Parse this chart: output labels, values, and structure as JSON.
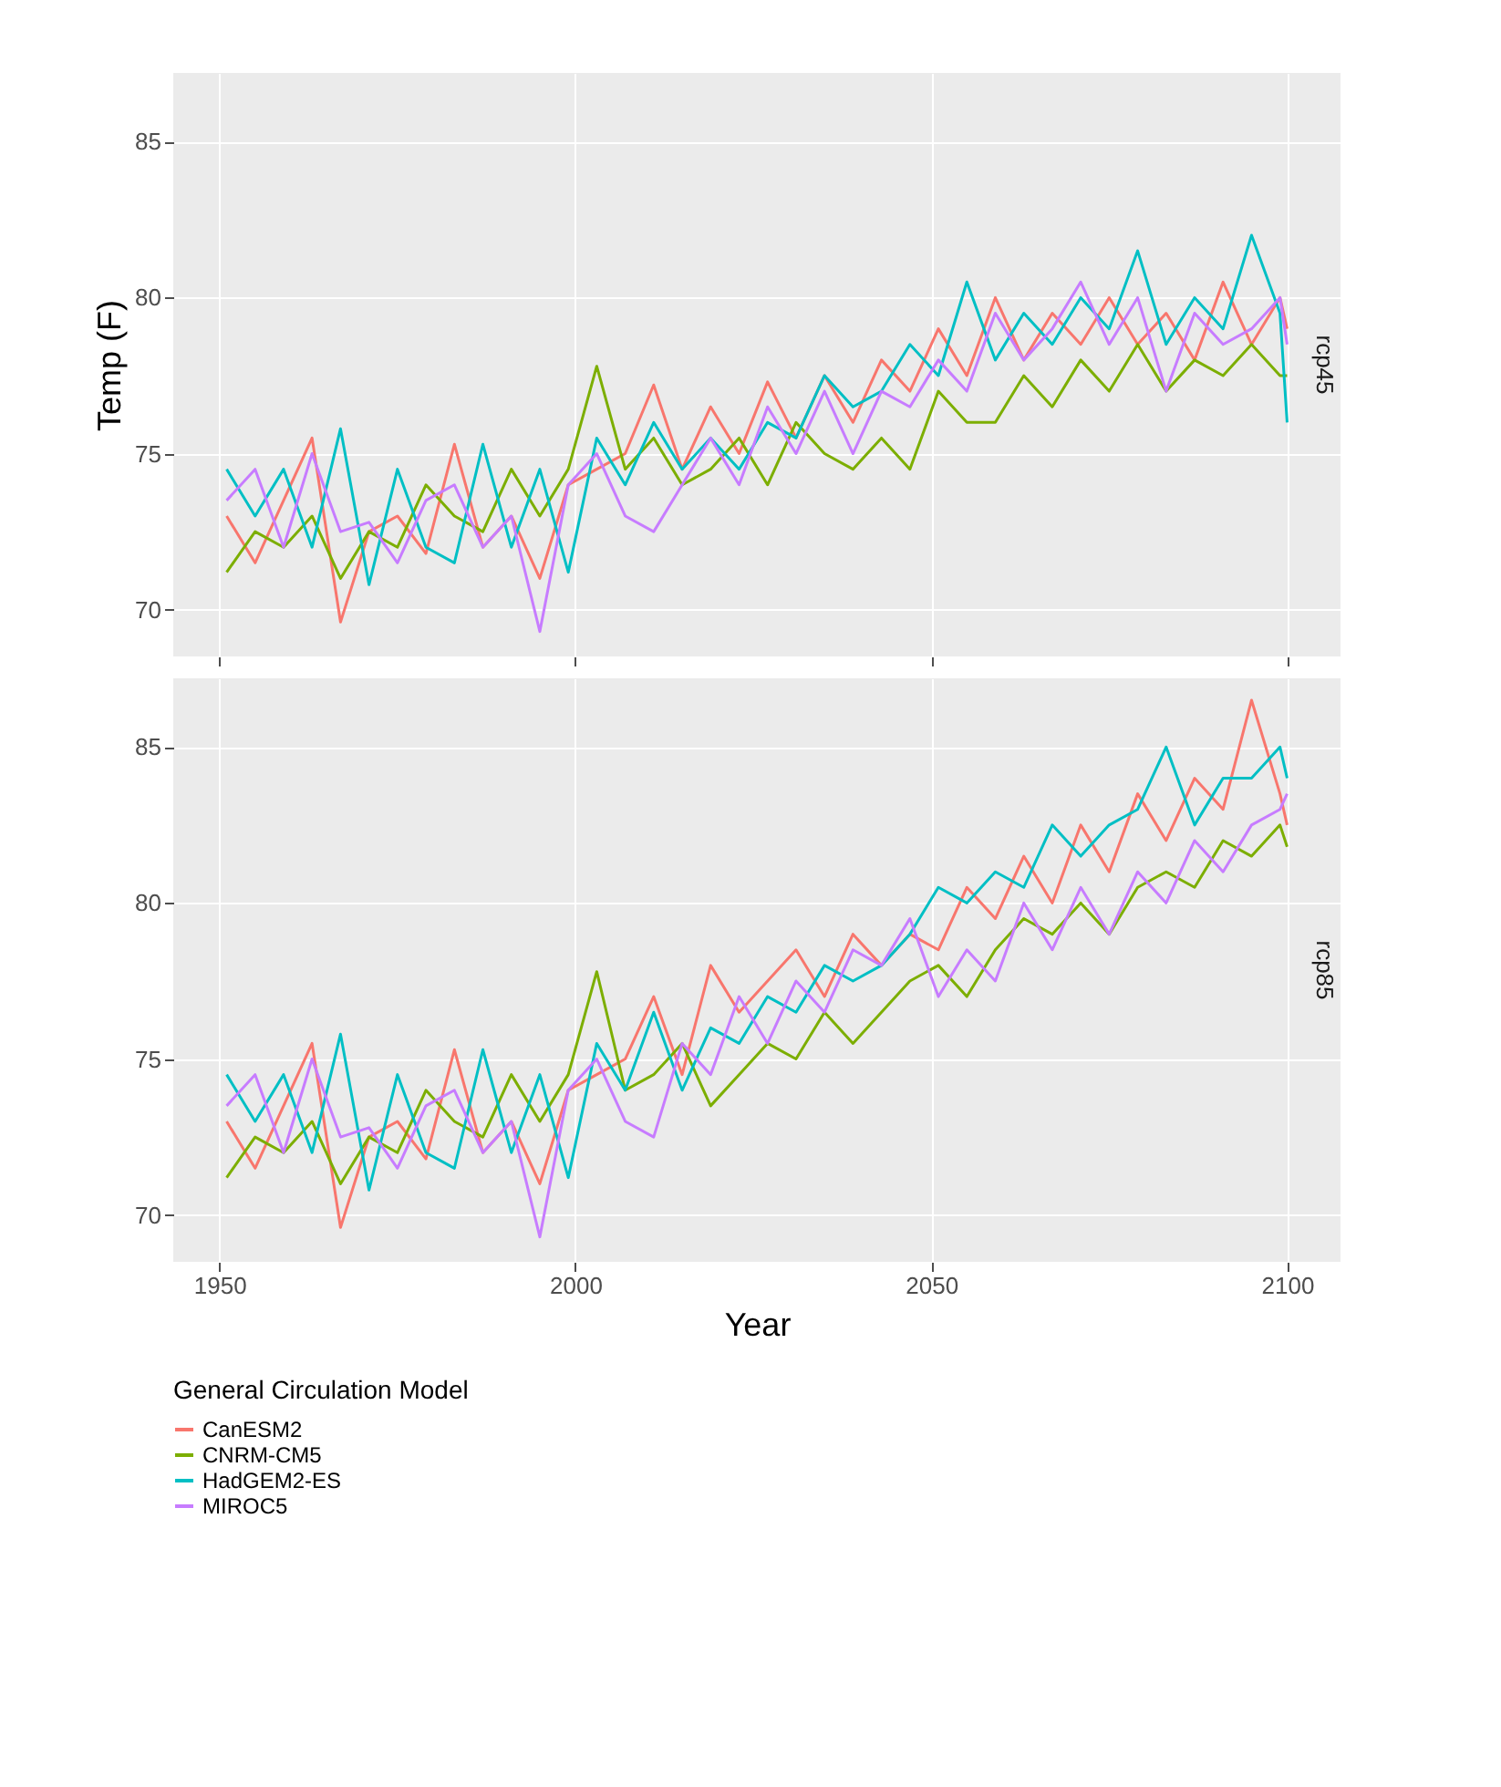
{
  "chart_data": [
    {
      "type": "line",
      "title": "rcp45",
      "ylabel": "Temp (F)",
      "tick_labels": "y",
      "grid": true,
      "legend": false,
      "x": [
        1951,
        1955,
        1959,
        1963,
        1967,
        1971,
        1975,
        1979,
        1983,
        1987,
        1991,
        1995,
        1999,
        2003,
        2007,
        2011,
        2015,
        2019,
        2023,
        2027,
        2031,
        2035,
        2039,
        2043,
        2047,
        2051,
        2055,
        2059,
        2063,
        2067,
        2071,
        2075,
        2079,
        2083,
        2087,
        2091,
        2095,
        2099,
        2100
      ],
      "xlim": [
        1943.5,
        2107.5
      ],
      "xticks": [
        1950,
        2000,
        2050,
        2100
      ],
      "ylim": [
        68.5,
        87.2
      ],
      "yticks": [
        70,
        75,
        80,
        85
      ],
      "series": [
        {
          "color": "#f8766d",
          "values": [
            73.0,
            71.5,
            73.5,
            75.5,
            69.6,
            72.5,
            73.0,
            71.8,
            75.3,
            72.0,
            73.0,
            71.0,
            74.0,
            74.5,
            75.0,
            77.2,
            74.5,
            76.5,
            75.0,
            77.3,
            75.5,
            77.5,
            76.0,
            78.0,
            77.0,
            79.0,
            77.5,
            80.0,
            78.0,
            79.5,
            78.5,
            80.0,
            78.5,
            79.5,
            78.0,
            80.5,
            78.5,
            80.0,
            79.0
          ]
        },
        {
          "color": "#7cae00",
          "values": [
            71.2,
            72.5,
            72.0,
            73.0,
            71.0,
            72.5,
            72.0,
            74.0,
            73.0,
            72.5,
            74.5,
            73.0,
            74.5,
            77.8,
            74.5,
            75.5,
            74.0,
            74.5,
            75.5,
            74.0,
            76.0,
            75.0,
            74.5,
            75.5,
            74.5,
            77.0,
            76.0,
            76.0,
            77.5,
            76.5,
            78.0,
            77.0,
            78.5,
            77.0,
            78.0,
            77.5,
            78.5,
            77.5,
            77.5
          ]
        },
        {
          "color": "#00bfc4",
          "values": [
            74.5,
            73.0,
            74.5,
            72.0,
            75.8,
            70.8,
            74.5,
            72.0,
            71.5,
            75.3,
            72.0,
            74.5,
            71.2,
            75.5,
            74.0,
            76.0,
            74.5,
            75.5,
            74.5,
            76.0,
            75.5,
            77.5,
            76.5,
            77.0,
            78.5,
            77.5,
            80.5,
            78.0,
            79.5,
            78.5,
            80.0,
            79.0,
            81.5,
            78.5,
            80.0,
            79.0,
            82.0,
            79.5,
            76.0
          ]
        },
        {
          "color": "#c77cff",
          "values": [
            73.5,
            74.5,
            72.0,
            75.0,
            72.5,
            72.8,
            71.5,
            73.5,
            74.0,
            72.0,
            73.0,
            69.3,
            74.0,
            75.0,
            73.0,
            72.5,
            74.0,
            75.5,
            74.0,
            76.5,
            75.0,
            77.0,
            75.0,
            77.0,
            76.5,
            78.0,
            77.0,
            79.5,
            78.0,
            79.0,
            80.5,
            78.5,
            80.0,
            77.0,
            79.5,
            78.5,
            79.0,
            80.0,
            78.5
          ]
        }
      ]
    },
    {
      "type": "line",
      "title": "rcp85",
      "xlabel": "Year",
      "legend_title": "General Circulation Model",
      "grid": true,
      "legend": "bottom",
      "x": [
        1951,
        1955,
        1959,
        1963,
        1967,
        1971,
        1975,
        1979,
        1983,
        1987,
        1991,
        1995,
        1999,
        2003,
        2007,
        2011,
        2015,
        2019,
        2023,
        2027,
        2031,
        2035,
        2039,
        2043,
        2047,
        2051,
        2055,
        2059,
        2063,
        2067,
        2071,
        2075,
        2079,
        2083,
        2087,
        2091,
        2095,
        2099,
        2100
      ],
      "xlim": [
        1943.5,
        2107.5
      ],
      "xticks": [
        1950,
        2000,
        2050,
        2100
      ],
      "ylim": [
        68.5,
        87.2
      ],
      "yticks": [
        70,
        75,
        80,
        85
      ],
      "series": [
        {
          "name": "CanESM2",
          "color": "#f8766d",
          "values": [
            73.0,
            71.5,
            73.5,
            75.5,
            69.6,
            72.5,
            73.0,
            71.8,
            75.3,
            72.0,
            73.0,
            71.0,
            74.0,
            74.5,
            75.0,
            77.0,
            74.5,
            78.0,
            76.5,
            77.5,
            78.5,
            77.0,
            79.0,
            78.0,
            79.0,
            78.5,
            80.5,
            79.5,
            81.5,
            80.0,
            82.5,
            81.0,
            83.5,
            82.0,
            84.0,
            83.0,
            86.5,
            83.5,
            82.5
          ]
        },
        {
          "name": "CNRM-CM5",
          "color": "#7cae00",
          "values": [
            71.2,
            72.5,
            72.0,
            73.0,
            71.0,
            72.5,
            72.0,
            74.0,
            73.0,
            72.5,
            74.5,
            73.0,
            74.5,
            77.8,
            74.0,
            74.5,
            75.5,
            73.5,
            74.5,
            75.5,
            75.0,
            76.5,
            75.5,
            76.5,
            77.5,
            78.0,
            77.0,
            78.5,
            79.5,
            79.0,
            80.0,
            79.0,
            80.5,
            81.0,
            80.5,
            82.0,
            81.5,
            82.5,
            81.8
          ]
        },
        {
          "name": "HadGEM2-ES",
          "color": "#00bfc4",
          "values": [
            74.5,
            73.0,
            74.5,
            72.0,
            75.8,
            70.8,
            74.5,
            72.0,
            71.5,
            75.3,
            72.0,
            74.5,
            71.2,
            75.5,
            74.0,
            76.5,
            74.0,
            76.0,
            75.5,
            77.0,
            76.5,
            78.0,
            77.5,
            78.0,
            79.0,
            80.5,
            80.0,
            81.0,
            80.5,
            82.5,
            81.5,
            82.5,
            83.0,
            85.0,
            82.5,
            84.0,
            84.0,
            85.0,
            84.0
          ]
        },
        {
          "name": "MIROC5",
          "color": "#c77cff",
          "values": [
            73.5,
            74.5,
            72.0,
            75.0,
            72.5,
            72.8,
            71.5,
            73.5,
            74.0,
            72.0,
            73.0,
            69.3,
            74.0,
            75.0,
            73.0,
            72.5,
            75.5,
            74.5,
            77.0,
            75.5,
            77.5,
            76.5,
            78.5,
            78.0,
            79.5,
            77.0,
            78.5,
            77.5,
            80.0,
            78.5,
            80.5,
            79.0,
            81.0,
            80.0,
            82.0,
            81.0,
            82.5,
            83.0,
            83.5
          ]
        }
      ]
    }
  ]
}
